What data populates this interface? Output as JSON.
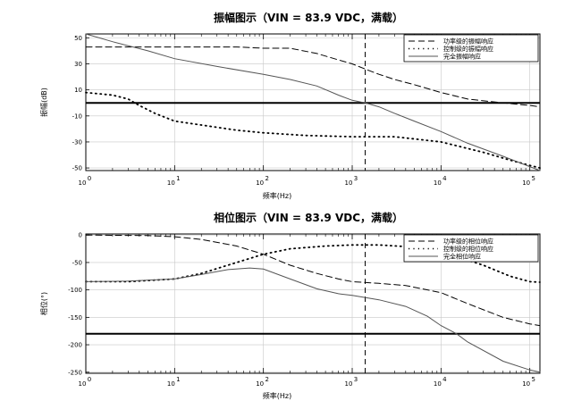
{
  "chart_data": [
    {
      "type": "line",
      "title": "振幅图示（VIN = 83.9 VDC，满载）",
      "xlabel": "频率(Hz)",
      "ylabel": "振幅(dB)",
      "xscale": "log",
      "xlim": [
        1,
        130000
      ],
      "ylim": [
        -52,
        53
      ],
      "xticks": [
        1,
        10,
        100,
        1000,
        10000,
        100000
      ],
      "xtick_labels": [
        {
          "base": "10",
          "exp": "0"
        },
        {
          "base": "10",
          "exp": "1"
        },
        {
          "base": "10",
          "exp": "2"
        },
        {
          "base": "10",
          "exp": "3"
        },
        {
          "base": "10",
          "exp": "4"
        },
        {
          "base": "10",
          "exp": "5"
        }
      ],
      "yticks": [
        50,
        30,
        10,
        -10,
        -30,
        -50
      ],
      "ytick_labels": [
        "50",
        "30",
        "10",
        "-10",
        "-30",
        "-50"
      ],
      "grid": true,
      "legend_position": "top-right",
      "reference_lines": {
        "horizontal_y": 0,
        "vertical_x": 1400
      },
      "series": [
        {
          "name": "功率级的振幅响应",
          "style": "dashed",
          "x": [
            1,
            3,
            10,
            50,
            100,
            200,
            400,
            700,
            1000,
            1400,
            2000,
            3000,
            5000,
            10000,
            20000,
            50000,
            100000,
            130000
          ],
          "y": [
            43,
            43,
            43,
            43,
            42,
            42,
            38,
            33,
            30,
            26,
            22,
            18,
            14,
            8,
            3,
            0,
            -2,
            -3
          ]
        },
        {
          "name": "控制级的振幅响应",
          "style": "dotted",
          "x": [
            1,
            2,
            3,
            4,
            6,
            10,
            20,
            50,
            100,
            300,
            1000,
            3000,
            10000,
            30000,
            60000,
            100000,
            130000
          ],
          "y": [
            8,
            6,
            3,
            -2,
            -8,
            -14,
            -17,
            -21,
            -23,
            -25,
            -26,
            -26,
            -30,
            -38,
            -44,
            -48,
            -50
          ]
        },
        {
          "name": "完全振幅响应",
          "style": "solid",
          "x": [
            1,
            2,
            5,
            10,
            30,
            100,
            200,
            400,
            700,
            1000,
            1400,
            2000,
            3000,
            5000,
            10000,
            20000,
            50000,
            100000,
            130000
          ],
          "y": [
            53,
            47,
            40,
            34,
            28,
            22,
            18,
            13,
            6,
            2,
            0,
            -3,
            -8,
            -14,
            -22,
            -31,
            -41,
            -49,
            -52
          ]
        }
      ]
    },
    {
      "type": "line",
      "title": "相位图示（VIN = 83.9 VDC，满载）",
      "xlabel": "频率(Hz)",
      "ylabel": "相位(°)",
      "xscale": "log",
      "xlim": [
        1,
        130000
      ],
      "ylim": [
        -252,
        2
      ],
      "xticks": [
        1,
        10,
        100,
        1000,
        10000,
        100000
      ],
      "xtick_labels": [
        {
          "base": "10",
          "exp": "0"
        },
        {
          "base": "10",
          "exp": "1"
        },
        {
          "base": "10",
          "exp": "2"
        },
        {
          "base": "10",
          "exp": "3"
        },
        {
          "base": "10",
          "exp": "4"
        },
        {
          "base": "10",
          "exp": "5"
        }
      ],
      "yticks": [
        0,
        -50,
        -100,
        -150,
        -200,
        -250
      ],
      "ytick_labels": [
        "0",
        "-50",
        "-100",
        "-150",
        "-200",
        "-250"
      ],
      "grid": true,
      "legend_position": "top-right",
      "reference_lines": {
        "horizontal_y": -180,
        "vertical_x": 1400
      },
      "series": [
        {
          "name": "功率级的相位响应",
          "style": "dashed",
          "x": [
            1,
            5,
            10,
            20,
            50,
            100,
            200,
            400,
            700,
            1000,
            2000,
            4000,
            10000,
            20000,
            50000,
            100000,
            130000
          ],
          "y": [
            0,
            -1,
            -3,
            -8,
            -20,
            -35,
            -55,
            -70,
            -80,
            -85,
            -88,
            -92,
            -105,
            -125,
            -150,
            -162,
            -165
          ]
        },
        {
          "name": "控制级的相位响应",
          "style": "dotted",
          "x": [
            1,
            3,
            10,
            20,
            50,
            100,
            200,
            500,
            1000,
            2000,
            5000,
            10000,
            30000,
            60000,
            100000,
            130000
          ],
          "y": [
            -85,
            -85,
            -80,
            -70,
            -50,
            -35,
            -25,
            -20,
            -18,
            -18,
            -22,
            -30,
            -55,
            -75,
            -85,
            -86
          ]
        },
        {
          "name": "完全相位响应",
          "style": "solid",
          "x": [
            1,
            3,
            10,
            20,
            40,
            70,
            100,
            200,
            400,
            700,
            1000,
            2000,
            4000,
            7000,
            10000,
            15000,
            20000,
            50000,
            100000,
            130000
          ],
          "y": [
            -85,
            -84,
            -80,
            -72,
            -63,
            -60,
            -62,
            -80,
            -98,
            -107,
            -110,
            -118,
            -130,
            -148,
            -165,
            -180,
            -195,
            -230,
            -246,
            -250
          ]
        }
      ]
    }
  ]
}
